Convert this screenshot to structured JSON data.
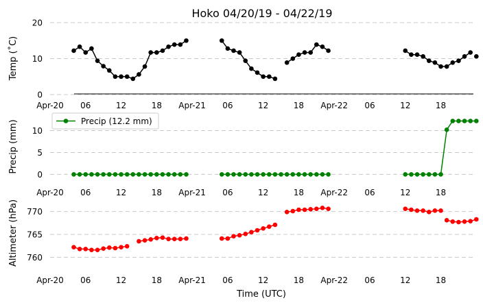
{
  "chart_data": {
    "type": "line",
    "title": "Hoko 04/20/19 - 04/22/19",
    "xlabel": "Time (UTC)",
    "xrange_hours": [
      0,
      71.5
    ],
    "xticks": [
      {
        "h": 0,
        "label": "Apr-20"
      },
      {
        "h": 6,
        "label": "06"
      },
      {
        "h": 12,
        "label": "12"
      },
      {
        "h": 18,
        "label": "18"
      },
      {
        "h": 24,
        "label": "Apr-21"
      },
      {
        "h": 30,
        "label": "06"
      },
      {
        "h": 36,
        "label": "12"
      },
      {
        "h": 42,
        "label": "18"
      },
      {
        "h": 48,
        "label": "Apr-22"
      },
      {
        "h": 54,
        "label": "06"
      },
      {
        "h": 60,
        "label": "12"
      },
      {
        "h": 66,
        "label": "18"
      }
    ],
    "panels": [
      {
        "id": "temp",
        "ylabel": "Temp (˚C)",
        "ylim": [
          0,
          20
        ],
        "yticks": [
          0,
          10,
          20
        ],
        "color": "#000000",
        "grid": true,
        "segments": [
          {
            "x": [
              4,
              5,
              6,
              7,
              8,
              9,
              10,
              11,
              12,
              13,
              14,
              15,
              16,
              17,
              18,
              19,
              20,
              21,
              22,
              23
            ],
            "y": [
              12.2,
              13.3,
              11.7,
              12.8,
              9.4,
              7.9,
              6.7,
              5.0,
              5.0,
              5.0,
              4.4,
              5.6,
              7.8,
              11.7,
              11.7,
              12.2,
              13.3,
              13.9,
              13.9,
              15.0
            ]
          },
          {
            "x": [
              29,
              30,
              31,
              32,
              33,
              34,
              35,
              36,
              37,
              38
            ],
            "y": [
              15.0,
              12.8,
              12.2,
              11.7,
              9.4,
              7.2,
              6.1,
              5.0,
              5.0,
              4.4
            ]
          },
          {
            "x": [
              40,
              41,
              42,
              43,
              44,
              45,
              46,
              47
            ],
            "y": [
              8.9,
              10.0,
              11.1,
              11.7,
              11.7,
              13.9,
              13.3,
              12.2
            ]
          },
          {
            "x": [
              60,
              61,
              62,
              63,
              64,
              65,
              66,
              67,
              68,
              69,
              70,
              71
            ],
            "y": [
              12.2,
              11.1,
              11.1,
              10.6,
              9.4,
              8.9,
              7.8,
              7.8,
              8.9,
              9.4,
              10.6,
              11.7
            ]
          },
          {
            "x": [
              72
            ],
            "y": [
              10.6
            ]
          }
        ]
      },
      {
        "id": "precip",
        "ylabel": "Precip (mm)",
        "ylim": [
          -1.5,
          14
        ],
        "yticks": [
          0,
          5,
          10
        ],
        "color": "#008000",
        "grid": true,
        "legend": {
          "label": "Precip (12.2 mm)",
          "loc": "upper-left"
        },
        "segments": [
          {
            "x": [
              4,
              5,
              6,
              7,
              8,
              9,
              10,
              11,
              12,
              13,
              14,
              15,
              16,
              17,
              18,
              19,
              20,
              21,
              22,
              23
            ],
            "y": [
              0,
              0,
              0,
              0,
              0,
              0,
              0,
              0,
              0,
              0,
              0,
              0,
              0,
              0,
              0,
              0,
              0,
              0,
              0,
              0
            ]
          },
          {
            "x": [
              29,
              30,
              31,
              32,
              33,
              34,
              35,
              36,
              37,
              38,
              39,
              40,
              41,
              42,
              43,
              44,
              45,
              46,
              47
            ],
            "y": [
              0,
              0,
              0,
              0,
              0,
              0,
              0,
              0,
              0,
              0,
              0,
              0,
              0,
              0,
              0,
              0,
              0,
              0,
              0
            ]
          },
          {
            "x": [
              60,
              61,
              62,
              63,
              64,
              65,
              66,
              67,
              68,
              69,
              70,
              71,
              72
            ],
            "y": [
              0,
              0,
              0,
              0,
              0,
              0,
              0,
              10.2,
              12.2,
              12.2,
              12.2,
              12.2,
              12.2
            ]
          }
        ]
      },
      {
        "id": "alt",
        "ylabel": "Altimeter (hPa)",
        "ylim": [
          757.5,
          772.5
        ],
        "yticks": [
          760,
          765,
          770
        ],
        "color": "#ff0000",
        "grid": true,
        "segments": [
          {
            "x": [
              4,
              5,
              6,
              7,
              8,
              9,
              10,
              11,
              12,
              13
            ],
            "y": [
              762.2,
              761.8,
              761.8,
              761.6,
              761.6,
              761.9,
              762.1,
              762.0,
              762.2,
              762.4
            ]
          },
          {
            "x": [
              15,
              16,
              17,
              18,
              19,
              20,
              21,
              22,
              23
            ],
            "y": [
              763.5,
              763.7,
              763.9,
              764.2,
              764.3,
              764.0,
              764.0,
              764.0,
              764.1
            ]
          },
          {
            "x": [
              29,
              30,
              31,
              32,
              33,
              34,
              35,
              36,
              37,
              38
            ],
            "y": [
              764.1,
              764.1,
              764.6,
              764.8,
              765.1,
              765.5,
              765.9,
              766.3,
              766.7,
              767.1
            ]
          },
          {
            "x": [
              40,
              41,
              42,
              43,
              44,
              45,
              46,
              47
            ],
            "y": [
              769.9,
              770.1,
              770.4,
              770.4,
              770.5,
              770.6,
              770.8,
              770.6
            ]
          },
          {
            "x": [
              60,
              61,
              62,
              63,
              64,
              65,
              66
            ],
            "y": [
              770.6,
              770.4,
              770.2,
              770.2,
              769.9,
              770.2,
              770.2
            ]
          },
          {
            "x": [
              67,
              68,
              69,
              70,
              71,
              72
            ],
            "y": [
              768.1,
              767.8,
              767.7,
              767.8,
              767.9,
              768.3
            ]
          }
        ]
      }
    ]
  }
}
